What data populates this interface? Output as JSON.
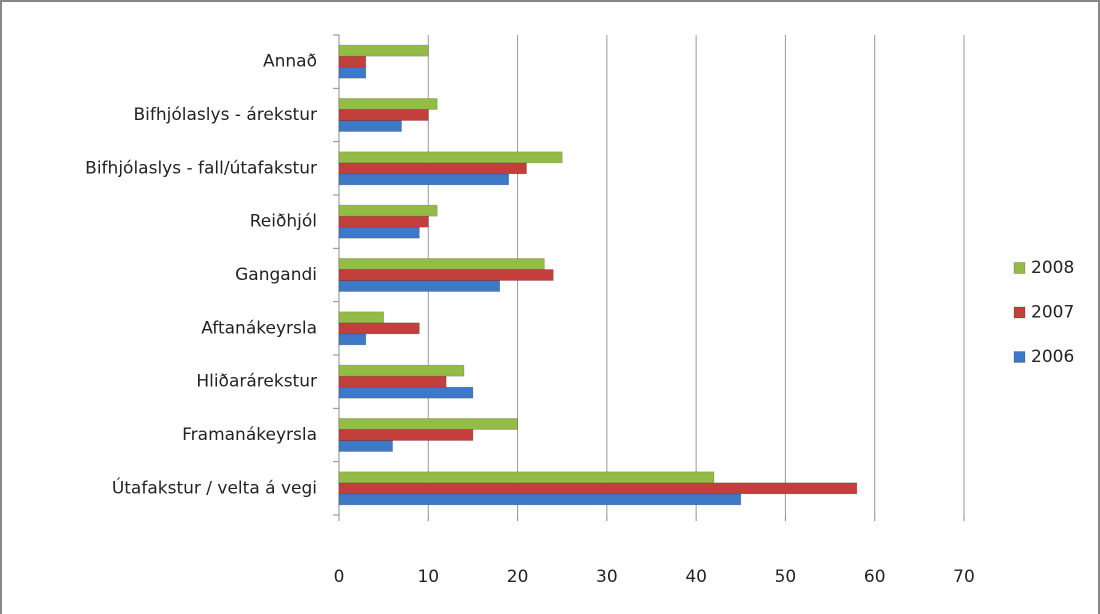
{
  "chart_data": {
    "type": "hbar",
    "categories": [
      "Annað",
      "Bifhjólaslys - árekstur",
      "Bifhjólaslys - fall/útafakstur",
      "Reiðhjól",
      "Gangandi",
      "Aftanákeyrsla",
      "Hliðarárekstur",
      "Framanákeyrsla",
      "Útafakstur / velta á vegi"
    ],
    "series": [
      {
        "name": "2006",
        "color": "#3f78c4",
        "values": [
          3,
          7,
          19,
          9,
          18,
          3,
          15,
          6,
          45
        ]
      },
      {
        "name": "2007",
        "color": "#c43e3b",
        "values": [
          3,
          10,
          21,
          10,
          24,
          9,
          12,
          15,
          58
        ]
      },
      {
        "name": "2008",
        "color": "#93bb45",
        "values": [
          10,
          11,
          25,
          11,
          23,
          5,
          14,
          20,
          42
        ]
      }
    ],
    "xlim": [
      0,
      70
    ],
    "xticks": [
      0,
      10,
      20,
      30,
      40,
      50,
      60,
      70
    ],
    "grid": true,
    "legend": "right"
  }
}
